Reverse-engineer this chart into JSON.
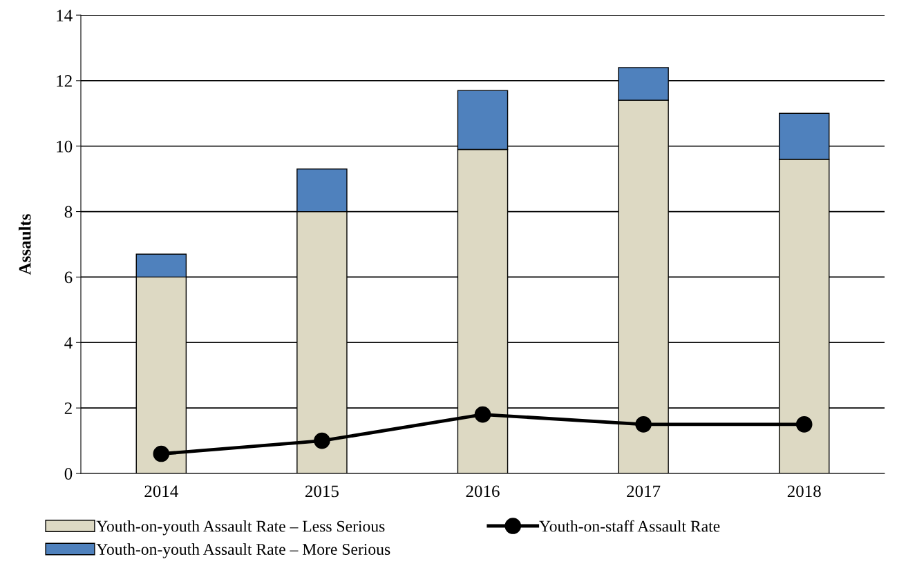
{
  "chart_data": {
    "type": "bar",
    "ylabel": "Assaults",
    "categories": [
      "2014",
      "2015",
      "2016",
      "2017",
      "2018"
    ],
    "stacked": true,
    "series": [
      {
        "name": "Youth-on-youth Assault Rate – Less Serious",
        "color": "#ddd9c3",
        "values": [
          6.0,
          8.0,
          9.9,
          11.4,
          9.6
        ]
      },
      {
        "name": "Youth-on-youth Assault Rate – More Serious",
        "color": "#4f81bd",
        "values": [
          0.7,
          1.3,
          1.8,
          1.0,
          1.4
        ]
      },
      {
        "name": "Youth-on-staff Assault Rate",
        "type": "line",
        "color": "#000000",
        "values": [
          0.6,
          1.0,
          1.8,
          1.5,
          1.5
        ],
        "marker": "circle",
        "line_style": "solid"
      }
    ],
    "ylim": [
      0,
      14
    ],
    "yticks": [
      0,
      2,
      4,
      6,
      8,
      10,
      12,
      14
    ],
    "grid": "y",
    "legend": "bottom"
  }
}
